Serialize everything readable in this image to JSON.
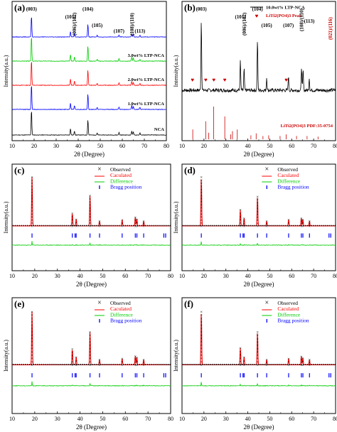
{
  "figure": {
    "background": "#ffffff"
  },
  "chart_data": [
    {
      "panel": "(a)",
      "type": "line",
      "xlabel": "2θ (Degree)",
      "ylabel": "Intensity(a.u.)",
      "xlim": [
        10,
        80
      ],
      "xticks": [
        10,
        20,
        30,
        40,
        50,
        60,
        70,
        80
      ],
      "peak_labels": [
        {
          "x": 18.8,
          "text": "(003)",
          "row": 0
        },
        {
          "x": 36.5,
          "text": "(101)",
          "row": 1
        },
        {
          "x": 38.3,
          "text": "(006)/(102)",
          "row": 2
        },
        {
          "x": 44.4,
          "text": "(104)",
          "row": 0
        },
        {
          "x": 48.6,
          "text": "(105)",
          "row": 3
        },
        {
          "x": 58.5,
          "text": "(107)",
          "row": 4
        },
        {
          "x": 64.3,
          "text": "(108)/(110)",
          "row": 2
        },
        {
          "x": 68.0,
          "text": "(113)",
          "row": 4
        }
      ],
      "series": [
        {
          "name": "NCA",
          "color": "#000000",
          "peaks": [
            [
              18.8,
              1.0
            ],
            [
              36.5,
              0.25
            ],
            [
              38.3,
              0.16
            ],
            [
              44.4,
              0.6
            ],
            [
              48.6,
              0.08
            ],
            [
              58.5,
              0.1
            ],
            [
              64.3,
              0.16
            ],
            [
              65.0,
              0.12
            ],
            [
              68.0,
              0.08
            ]
          ]
        },
        {
          "name": "1.0wt% LTP-NCA",
          "color": "#0000ff",
          "peaks": [
            [
              18.8,
              1.0
            ],
            [
              36.5,
              0.25
            ],
            [
              38.3,
              0.16
            ],
            [
              44.4,
              0.6
            ],
            [
              48.6,
              0.08
            ],
            [
              58.5,
              0.1
            ],
            [
              64.3,
              0.16
            ],
            [
              65.0,
              0.12
            ],
            [
              68.0,
              0.08
            ]
          ]
        },
        {
          "name": "2.0wt% LTP-NCA",
          "color": "#ff0000",
          "peaks": [
            [
              18.8,
              1.0
            ],
            [
              36.5,
              0.25
            ],
            [
              38.3,
              0.16
            ],
            [
              44.4,
              0.6
            ],
            [
              48.6,
              0.08
            ],
            [
              58.5,
              0.1
            ],
            [
              64.3,
              0.16
            ],
            [
              65.0,
              0.12
            ],
            [
              68.0,
              0.08
            ]
          ]
        },
        {
          "name": "3.0wt% LTP-NCA",
          "color": "#00cc00",
          "peaks": [
            [
              18.8,
              1.0
            ],
            [
              36.5,
              0.25
            ],
            [
              38.3,
              0.16
            ],
            [
              44.4,
              0.6
            ],
            [
              48.6,
              0.08
            ],
            [
              58.5,
              0.1
            ],
            [
              64.3,
              0.16
            ],
            [
              65.0,
              0.12
            ],
            [
              68.0,
              0.08
            ]
          ]
        },
        {
          "name": "",
          "color": "#0000ff",
          "peaks": [
            [
              18.8,
              1.0
            ],
            [
              36.5,
              0.25
            ],
            [
              38.3,
              0.16
            ],
            [
              44.4,
              0.6
            ],
            [
              48.6,
              0.08
            ],
            [
              58.5,
              0.1
            ],
            [
              64.3,
              0.16
            ],
            [
              65.0,
              0.12
            ],
            [
              68.0,
              0.08
            ]
          ]
        }
      ],
      "series_labels": [
        "NCA",
        "1.0wt% LTP-NCA",
        "2.0wt% LTP-NCA",
        "3.0wt% LTP-NCA"
      ]
    },
    {
      "panel": "(b)",
      "type": "line",
      "xlabel": "2θ (Degree)",
      "ylabel": "Intensity(a.u.)",
      "xlim": [
        10,
        80
      ],
      "xticks": [
        10,
        20,
        30,
        40,
        50,
        60,
        70,
        80
      ],
      "legend": {
        "position": "top-right",
        "line_label": "10.0wt% LTP-NCA",
        "marker_label": "LiTi2(PO4)3 Peak"
      },
      "peak_labels": [
        {
          "x": 18.8,
          "text": "(003)",
          "row": 0
        },
        {
          "x": 36.6,
          "text": "(101)",
          "row": 1
        },
        {
          "x": 38.3,
          "text": "(006)/(102)",
          "row": 2
        },
        {
          "x": 44.4,
          "text": "(104)",
          "row": 0
        },
        {
          "x": 48.6,
          "text": "(105)",
          "row": 3
        },
        {
          "x": 58.5,
          "text": "(107)",
          "row": 3
        },
        {
          "x": 64.5,
          "text": "(108)/(110)",
          "row": 1
        },
        {
          "x": 68.0,
          "text": "(113)",
          "row": 2
        },
        {
          "x": 77.6,
          "text": "(021)/(116)",
          "row": 3,
          "color": "#cc0000"
        }
      ],
      "pattern": {
        "color": "#000000",
        "peaks": [
          [
            18.8,
            1.0
          ],
          [
            36.6,
            0.42
          ],
          [
            38.3,
            0.3
          ],
          [
            44.4,
            0.72
          ],
          [
            48.6,
            0.18
          ],
          [
            58.5,
            0.2
          ],
          [
            64.5,
            0.34
          ],
          [
            65.2,
            0.28
          ],
          [
            68.0,
            0.18
          ]
        ]
      },
      "ltp_markers_x": [
        14.8,
        20.8,
        24.5,
        29.5,
        57.5
      ],
      "reference": {
        "label": "LiTi2(PO4)3 PDF:35-0754",
        "color": "#cc0000",
        "x": [
          14.9,
          20.8,
          22.2,
          24.4,
          29.5,
          32.2,
          33.0,
          35.2,
          41.4,
          43.8,
          46.9,
          49.5,
          54.7,
          57.5,
          62.2,
          67.0,
          72.0
        ],
        "h": [
          0.3,
          0.55,
          0.2,
          1.0,
          0.7,
          0.15,
          0.25,
          0.3,
          0.12,
          0.18,
          0.1,
          0.12,
          0.1,
          0.15,
          0.1,
          0.1,
          0.08
        ]
      }
    },
    {
      "panel": "(c)",
      "type": "line",
      "xlabel": "2θ (Degree)",
      "ylabel": "Intensity(a.u.)",
      "xlim": [
        10,
        80
      ],
      "xticks": [
        10,
        20,
        30,
        40,
        50,
        60,
        70,
        80
      ],
      "legend": {
        "position": "top-right",
        "items": [
          "Observed",
          "Caculated",
          "Difference",
          "Bragg position"
        ]
      },
      "peaks": [
        [
          18.8,
          1.0
        ],
        [
          36.6,
          0.26
        ],
        [
          38.3,
          0.14
        ],
        [
          44.4,
          0.62
        ],
        [
          48.6,
          0.1
        ],
        [
          58.6,
          0.12
        ],
        [
          64.4,
          0.18
        ],
        [
          65.1,
          0.14
        ],
        [
          68.1,
          0.1
        ]
      ],
      "bragg": [
        18.8,
        36.6,
        37.8,
        38.3,
        44.4,
        48.6,
        58.6,
        64.4,
        65.1,
        68.1,
        77.0,
        77.8
      ]
    },
    {
      "panel": "(d)",
      "type": "line",
      "xlabel": "2θ (Degree)",
      "ylabel": "Intensity(a.u.)",
      "xlim": [
        10,
        80
      ],
      "xticks": [
        10,
        20,
        30,
        40,
        50,
        60,
        70,
        80
      ],
      "legend": {
        "position": "top-right",
        "items": [
          "Observed",
          "Caculated",
          "Difference",
          "Bragg position"
        ]
      },
      "peaks": [
        [
          18.8,
          1.0
        ],
        [
          36.6,
          0.33
        ],
        [
          38.3,
          0.16
        ],
        [
          44.4,
          0.6
        ],
        [
          48.6,
          0.1
        ],
        [
          58.6,
          0.13
        ],
        [
          64.4,
          0.16
        ],
        [
          65.1,
          0.13
        ],
        [
          68.1,
          0.1
        ]
      ],
      "bragg": [
        18.8,
        36.6,
        37.8,
        38.3,
        44.4,
        48.6,
        58.6,
        64.4,
        65.1,
        68.1,
        77.0,
        77.8
      ]
    },
    {
      "panel": "(e)",
      "type": "line",
      "xlabel": "2θ (Degree)",
      "ylabel": "Intensity(a.u.)",
      "xlim": [
        10,
        80
      ],
      "xticks": [
        10,
        20,
        30,
        40,
        50,
        60,
        70,
        80
      ],
      "legend": {
        "position": "top-right",
        "items": [
          "Observed",
          "Caculated",
          "Difference",
          "Bragg position"
        ]
      },
      "peaks": [
        [
          18.8,
          1.0
        ],
        [
          36.6,
          0.3
        ],
        [
          38.3,
          0.15
        ],
        [
          44.4,
          0.62
        ],
        [
          48.6,
          0.1
        ],
        [
          58.6,
          0.12
        ],
        [
          64.4,
          0.17
        ],
        [
          65.1,
          0.14
        ],
        [
          68.1,
          0.1
        ]
      ],
      "bragg": [
        18.8,
        36.6,
        37.8,
        38.3,
        44.4,
        48.6,
        58.6,
        64.4,
        65.1,
        68.1,
        77.0,
        77.8
      ]
    },
    {
      "panel": "(f)",
      "type": "line",
      "xlabel": "2θ (Degree)",
      "ylabel": "Intensity(a.u.)",
      "xlim": [
        10,
        80
      ],
      "xticks": [
        10,
        20,
        30,
        40,
        50,
        60,
        70,
        80
      ],
      "legend": {
        "position": "top-right",
        "items": [
          "Observed",
          "Caculated",
          "Difference",
          "Bragg position"
        ]
      },
      "peaks": [
        [
          18.8,
          1.0
        ],
        [
          36.6,
          0.32
        ],
        [
          38.3,
          0.15
        ],
        [
          44.4,
          0.62
        ],
        [
          48.6,
          0.1
        ],
        [
          58.6,
          0.12
        ],
        [
          64.4,
          0.16
        ],
        [
          65.1,
          0.13
        ],
        [
          68.1,
          0.1
        ]
      ],
      "bragg": [
        18.8,
        36.6,
        37.8,
        38.3,
        44.4,
        48.6,
        58.6,
        64.4,
        65.1,
        68.1,
        77.0,
        77.8
      ]
    }
  ],
  "colors": {
    "observed": "#000000",
    "calculated": "#ff0000",
    "difference": "#00cc00",
    "bragg": "#0000ff",
    "ltp_marker": "#cc0000"
  }
}
